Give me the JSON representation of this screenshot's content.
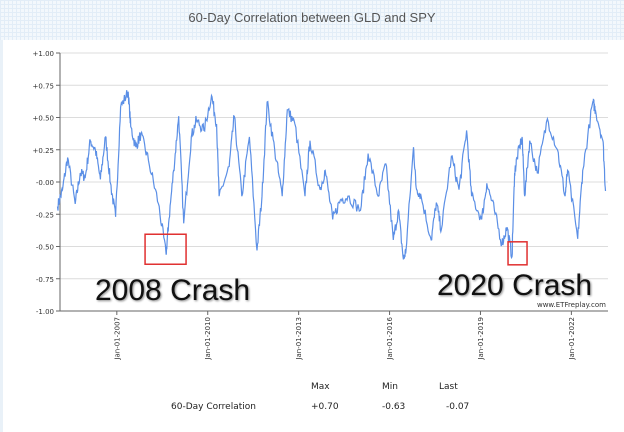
{
  "chart_data": {
    "type": "line",
    "title": "60-Day Correlation between GLD and SPY",
    "xlabel": "",
    "ylabel": "",
    "ylim": [
      -1.0,
      1.0
    ],
    "xlim": [
      "2005-02",
      "2023-03"
    ],
    "grid": true,
    "yticks": [
      "+1.00",
      "+0.75",
      "+0.50",
      "+0.25",
      "-0.00",
      "-0.25",
      "-0.50",
      "-0.75",
      "-1.00"
    ],
    "xticks": [
      "Jan-01-2007",
      "Jan-01-2010",
      "Jan-01-2013",
      "Jan-01-2016",
      "Jan-01-2019",
      "Jan-01-2022"
    ],
    "series_color": "#5b8fe6",
    "series": [
      {
        "x": [
          "2005-01",
          "2005-03",
          "2005-05",
          "2005-08",
          "2005-10",
          "2005-12",
          "2006-02",
          "2006-04",
          "2006-06",
          "2006-08",
          "2006-10",
          "2006-12",
          "2007-02",
          "2007-05",
          "2007-06",
          "2007-08",
          "2007-10",
          "2008-01",
          "2008-05",
          "2008-08",
          "2008-09",
          "2008-11",
          "2009-01",
          "2009-03",
          "2009-06",
          "2009-08",
          "2009-11",
          "2010-02",
          "2010-04",
          "2010-05",
          "2010-09",
          "2010-11",
          "2011-02",
          "2011-05",
          "2011-08",
          "2011-10",
          "2011-12",
          "2012-03",
          "2012-06",
          "2012-08",
          "2012-11",
          "2013-03",
          "2013-05",
          "2013-09",
          "2013-11",
          "2014-02",
          "2014-05",
          "2014-08",
          "2015-01",
          "2015-04",
          "2015-08",
          "2015-11",
          "2016-02",
          "2016-04",
          "2016-06",
          "2016-07",
          "2016-10",
          "2016-11",
          "2017-01",
          "2017-05",
          "2017-07",
          "2017-09",
          "2018-01",
          "2018-04",
          "2018-07",
          "2018-09",
          "2019-01",
          "2019-03",
          "2019-06",
          "2019-09",
          "2019-11",
          "2020-01",
          "2020-02",
          "2020-03",
          "2020-05",
          "2020-06",
          "2020-08",
          "2020-11",
          "2021-03",
          "2021-07",
          "2021-10",
          "2021-11",
          "2022-03",
          "2022-05",
          "2022-09",
          "2022-10",
          "2023-01",
          "2023-02"
        ],
        "y": [
          -0.19,
          -0.06,
          0.19,
          -0.17,
          0.07,
          0.04,
          0.32,
          0.25,
          0.02,
          0.35,
          -0.01,
          -0.27,
          0.58,
          0.7,
          0.43,
          0.27,
          0.37,
          0.17,
          -0.17,
          -0.56,
          -0.32,
          0.09,
          0.51,
          -0.32,
          0.35,
          0.48,
          0.4,
          0.67,
          0.45,
          -0.11,
          0.12,
          0.51,
          -0.11,
          0.35,
          -0.53,
          -0.11,
          0.62,
          0.25,
          -0.11,
          0.56,
          0.45,
          -0.11,
          0.32,
          -0.06,
          0.09,
          -0.29,
          -0.14,
          -0.11,
          -0.22,
          0.22,
          -0.11,
          0.14,
          -0.45,
          -0.22,
          -0.6,
          -0.53,
          0.27,
          -0.04,
          -0.11,
          -0.45,
          -0.16,
          -0.37,
          0.2,
          -0.06,
          0.4,
          -0.11,
          -0.29,
          -0.01,
          -0.22,
          -0.48,
          -0.35,
          -0.58,
          0.07,
          0.19,
          0.35,
          -0.11,
          0.32,
          0.07,
          0.49,
          0.25,
          -0.11,
          0.09,
          -0.44,
          0.09,
          0.62,
          0.56,
          0.32,
          -0.07
        ]
      }
    ],
    "annotations": [
      {
        "text": "2008 Crash",
        "date": "2008-08",
        "color": "#e03030"
      },
      {
        "text": "2020 Crash",
        "date": "2020-01",
        "color": "#e03030"
      }
    ],
    "watermark": "www.ETFreplay.com"
  },
  "stats": {
    "headers": [
      "Max",
      "Min",
      "Last"
    ],
    "row_label": "60-Day Correlation",
    "values": [
      "+0.70",
      "-0.63",
      "-0.07"
    ]
  }
}
